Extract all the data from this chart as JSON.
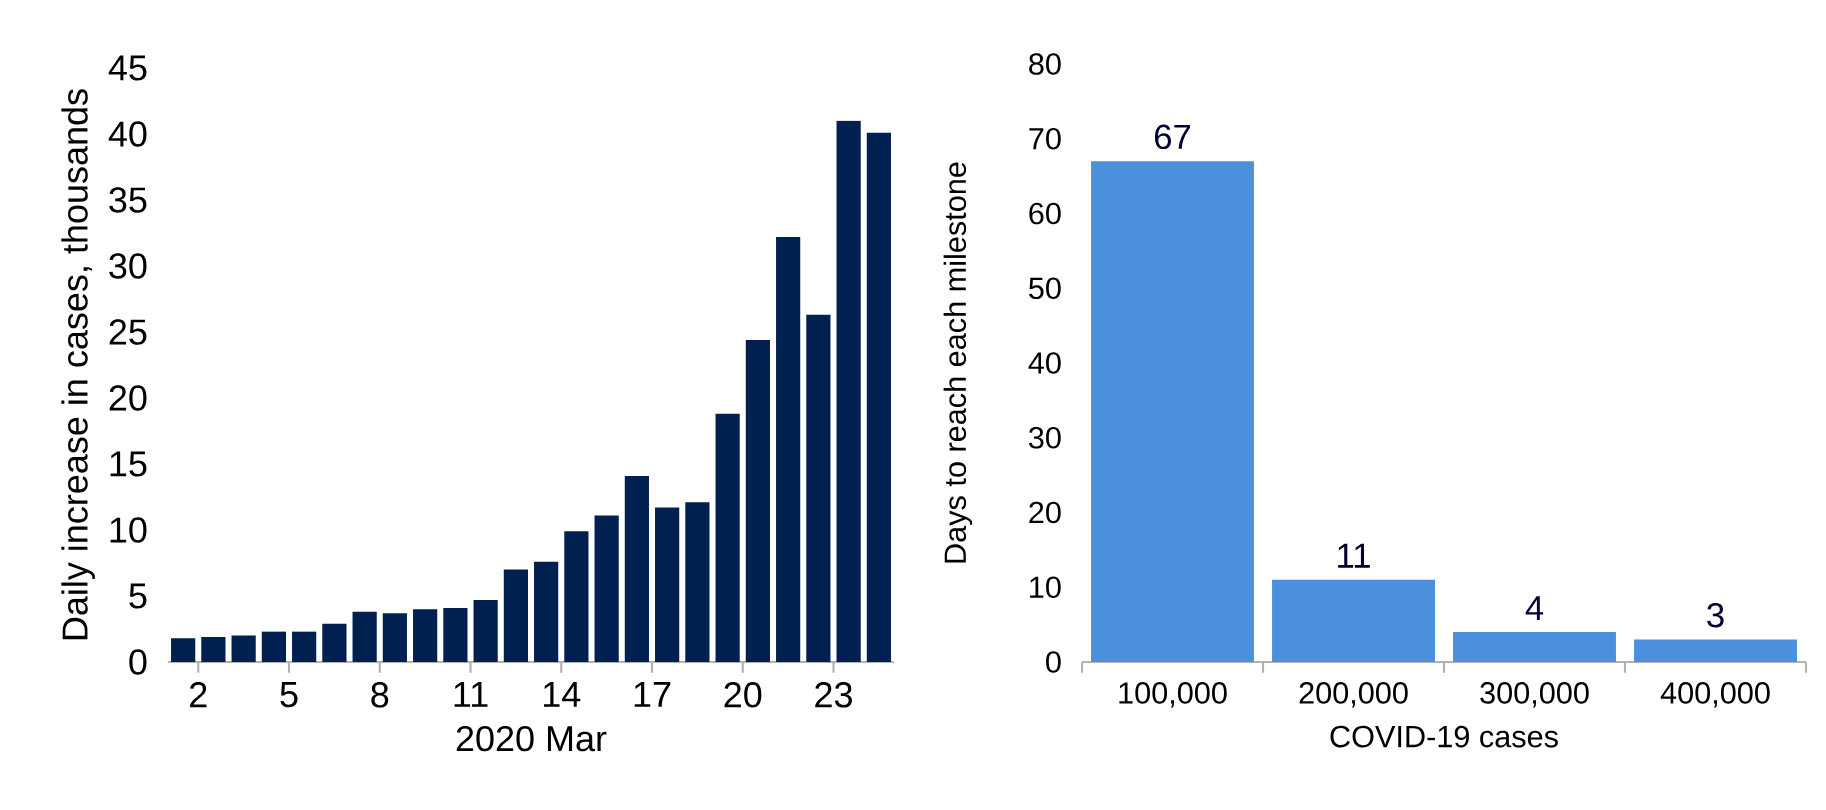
{
  "chart_data": [
    {
      "type": "bar",
      "xlabel": "2020 Mar",
      "ylabel": "Daily increase in cases, thousands",
      "color": "#002050",
      "x": [
        1.5,
        2.5,
        3.5,
        4.5,
        5.5,
        6.5,
        7.5,
        8.5,
        9.5,
        10.5,
        11.5,
        12.5,
        13.5,
        14.5,
        15.5,
        16.5,
        17.5,
        18.5,
        19.5,
        20.5,
        21.5,
        22.5,
        23.5,
        24.5
      ],
      "values": [
        1.8,
        1.9,
        2.0,
        2.3,
        2.3,
        2.9,
        3.8,
        3.7,
        4.0,
        4.1,
        4.7,
        7.0,
        7.6,
        9.9,
        11.1,
        14.1,
        11.7,
        12.1,
        18.8,
        24.4,
        32.2,
        26.3,
        41.0,
        40.1
      ],
      "xlim": [
        1,
        25
      ],
      "xticks": [
        2,
        5,
        8,
        11,
        14,
        17,
        20,
        23
      ],
      "ylim": [
        0,
        45
      ],
      "yticks": [
        0,
        5,
        10,
        15,
        20,
        25,
        30,
        35,
        40,
        45
      ],
      "grid": false
    },
    {
      "type": "bar",
      "xlabel": "COVID-19 cases",
      "ylabel": "Days to reach each milestone",
      "color": "#4a90dc",
      "categories": [
        "100,000",
        "200,000",
        "300,000",
        "400,000"
      ],
      "values": [
        67,
        11,
        4,
        3
      ],
      "data_labels": true,
      "ylim": [
        0,
        80
      ],
      "yticks": [
        0,
        10,
        20,
        30,
        40,
        50,
        60,
        70,
        80
      ],
      "grid": false
    }
  ]
}
